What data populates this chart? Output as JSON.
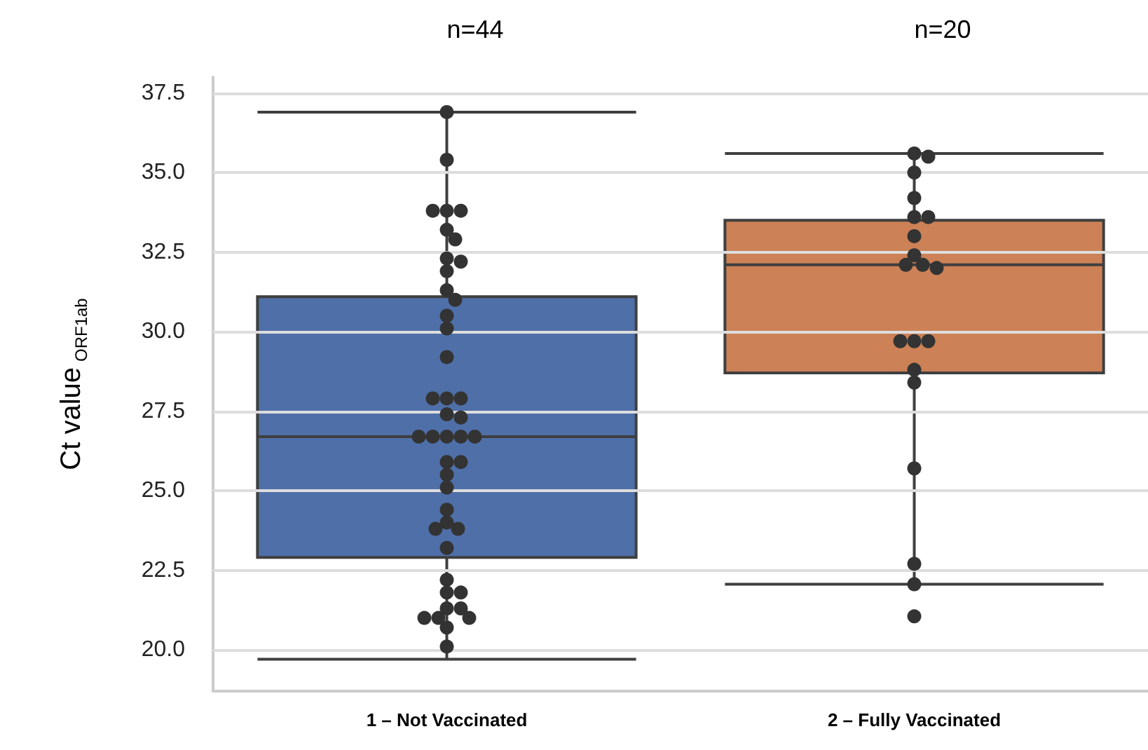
{
  "chart_data": {
    "type": "box",
    "categories": [
      "1 – Not Vaccinated",
      "2 – Fully Vaccinated"
    ],
    "ylabel": "Ct value$_{ORF1ab}$",
    "ylim": [
      18.7,
      38.0
    ],
    "yticks": [
      {
        "value": 20,
        "label": "20.0"
      },
      {
        "value": 22.5,
        "label": "22.5"
      },
      {
        "value": 25,
        "label": "25.0"
      },
      {
        "value": 27.5,
        "label": "27.5"
      },
      {
        "value": 30,
        "label": "30.0"
      },
      {
        "value": 32.5,
        "label": "32.5"
      },
      {
        "value": 35,
        "label": "35.0"
      },
      {
        "value": 37.5,
        "label": "37.5"
      }
    ],
    "grid": "y",
    "annotations": [
      "n=44",
      "n=20"
    ],
    "series": [
      {
        "colors": [
          "#4f6fa8",
          "#cc8156"
        ],
        "boxes": [
          {
            "low": 19.7,
            "q1": 22.9,
            "median": 26.7,
            "q3": 31.1,
            "high": 36.9
          },
          {
            "low": 22.06,
            "q1": 28.7,
            "median": 32.1,
            "q3": 33.5,
            "high": 35.6
          }
        ]
      },
      {
        "type": "scatter",
        "color": "#333333",
        "x": [
          "1 – Not Vaccinated",
          "1 – Not Vaccinated",
          "1 – Not Vaccinated",
          "1 – Not Vaccinated",
          "1 – Not Vaccinated",
          "1 – Not Vaccinated",
          "1 – Not Vaccinated",
          "1 – Not Vaccinated",
          "1 – Not Vaccinated",
          "1 – Not Vaccinated",
          "1 – Not Vaccinated",
          "1 – Not Vaccinated",
          "1 – Not Vaccinated",
          "1 – Not Vaccinated",
          "1 – Not Vaccinated",
          "1 – Not Vaccinated",
          "1 – Not Vaccinated",
          "1 – Not Vaccinated",
          "1 – Not Vaccinated",
          "1 – Not Vaccinated",
          "1 – Not Vaccinated",
          "1 – Not Vaccinated",
          "1 – Not Vaccinated",
          "1 – Not Vaccinated",
          "1 – Not Vaccinated",
          "1 – Not Vaccinated",
          "1 – Not Vaccinated",
          "1 – Not Vaccinated",
          "1 – Not Vaccinated",
          "1 – Not Vaccinated",
          "1 – Not Vaccinated",
          "1 – Not Vaccinated",
          "1 – Not Vaccinated",
          "1 – Not Vaccinated",
          "1 – Not Vaccinated",
          "1 – Not Vaccinated",
          "1 – Not Vaccinated",
          "1 – Not Vaccinated",
          "1 – Not Vaccinated",
          "1 – Not Vaccinated",
          "1 – Not Vaccinated",
          "1 – Not Vaccinated",
          "1 – Not Vaccinated",
          "1 – Not Vaccinated",
          "2 – Fully Vaccinated",
          "2 – Fully Vaccinated",
          "2 – Fully Vaccinated",
          "2 – Fully Vaccinated",
          "2 – Fully Vaccinated",
          "2 – Fully Vaccinated",
          "2 – Fully Vaccinated",
          "2 – Fully Vaccinated",
          "2 – Fully Vaccinated",
          "2 – Fully Vaccinated",
          "2 – Fully Vaccinated",
          "2 – Fully Vaccinated",
          "2 – Fully Vaccinated",
          "2 – Fully Vaccinated",
          "2 – Fully Vaccinated",
          "2 – Fully Vaccinated",
          "2 – Fully Vaccinated",
          "2 – Fully Vaccinated",
          "2 – Fully Vaccinated",
          "2 – Fully Vaccinated"
        ],
        "values": [
          36.9,
          35.4,
          33.8,
          33.8,
          33.8,
          33.2,
          32.9,
          32.3,
          32.2,
          31.9,
          31.3,
          31.0,
          30.5,
          30.1,
          29.2,
          27.9,
          27.9,
          27.9,
          27.4,
          27.3,
          26.7,
          26.7,
          26.7,
          26.7,
          26.7,
          25.9,
          25.9,
          25.5,
          25.1,
          24.4,
          24.0,
          23.8,
          23.8,
          23.2,
          22.2,
          21.8,
          21.8,
          21.3,
          21.3,
          21.0,
          21.0,
          21.0,
          20.7,
          20.1,
          35.6,
          35.5,
          35.0,
          34.2,
          33.6,
          33.6,
          33.0,
          32.4,
          32.1,
          32.1,
          32.0,
          29.7,
          29.7,
          29.7,
          28.8,
          28.4,
          25.7,
          22.7,
          22.06,
          21.05
        ]
      }
    ]
  }
}
